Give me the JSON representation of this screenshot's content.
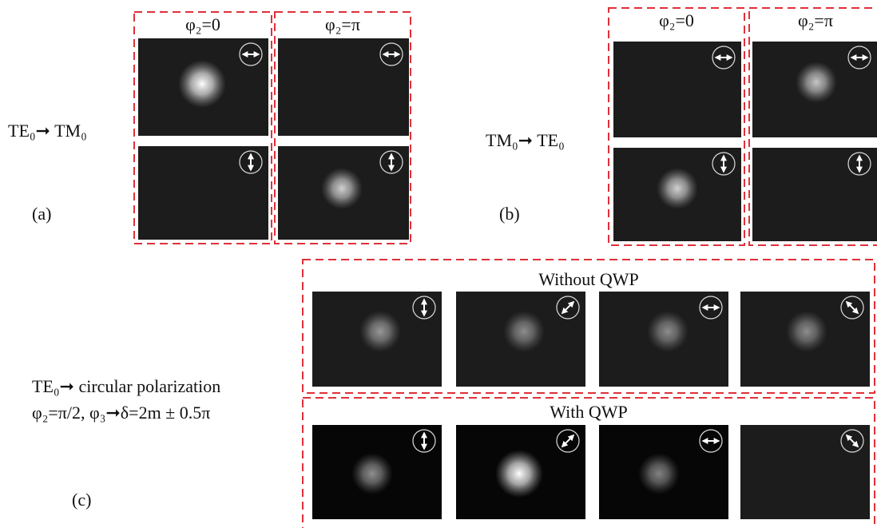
{
  "panel_a": {
    "label": "(a)",
    "conversion": "TE₀➞ TM₀",
    "columns": [
      "φ₂=0",
      "φ₂=π"
    ]
  },
  "panel_b": {
    "label": "(b)",
    "conversion": "TM₀➞ TE₀",
    "columns": [
      "φ₂=0",
      "φ₂=π"
    ]
  },
  "panel_c": {
    "label": "(c)",
    "conversion": "TE₀➞ circular polarization",
    "condition": "φ₂=π/2, φ₃➞δ=2m ± 0.5π",
    "rows": [
      "Without QWP",
      "With QWP"
    ]
  }
}
